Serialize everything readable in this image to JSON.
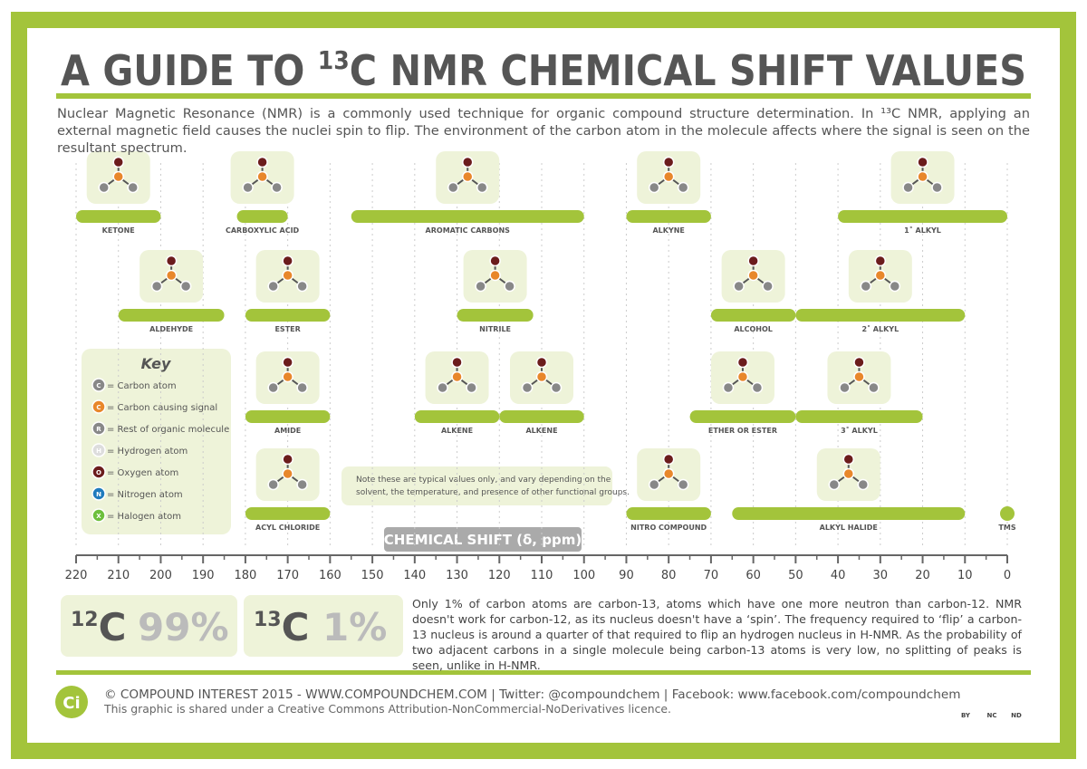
{
  "header": {
    "title_parts": [
      "A GUIDE TO ",
      "13",
      "C NMR CHEMICAL SHIFT VALUES"
    ],
    "intro": "Nuclear Magnetic Resonance (NMR) is a commonly used technique for organic compound structure determination. In ¹³C NMR, applying an external magnetic field causes the nuclei spin to flip. The environment of the carbon atom in the molecule affects where the signal is seen on the resultant spectrum."
  },
  "shift_rows": [
    [
      {
        "label": "KETONE",
        "from": 220,
        "to": 200
      },
      {
        "label": "CARBOXYLIC ACID",
        "from": 182,
        "to": 170
      },
      {
        "label": "AROMATIC CARBONS",
        "from": 155,
        "to": 100
      },
      {
        "label": "ALKYNE",
        "from": 90,
        "to": 70
      },
      {
        "label": "1˚ ALKYL",
        "from": 40,
        "to": 0
      }
    ],
    [
      {
        "label": "ALDEHYDE",
        "from": 210,
        "to": 185
      },
      {
        "label": "ESTER",
        "from": 180,
        "to": 160
      },
      {
        "label": "NITRILE",
        "from": 130,
        "to": 112
      },
      {
        "label": "ALCOHOL",
        "from": 70,
        "to": 50
      },
      {
        "label": "2˚ ALKYL",
        "from": 50,
        "to": 10
      }
    ],
    [
      {
        "label": "AMIDE",
        "from": 180,
        "to": 160
      },
      {
        "label": "ALKENE",
        "from": 140,
        "to": 120
      },
      {
        "label": "ALKENE",
        "from": 120,
        "to": 100
      },
      {
        "label": "ETHER OR ESTER",
        "from": 75,
        "to": 50
      },
      {
        "label": "3˚ ALKYL",
        "from": 50,
        "to": 20
      }
    ],
    [
      {
        "label": "ACYL CHLORIDE",
        "from": 180,
        "to": 160
      },
      {
        "label": "NITRO COMPOUND",
        "from": 90,
        "to": 70
      },
      {
        "label": "ALKYL HALIDE",
        "from": 65,
        "to": 10
      }
    ]
  ],
  "tms": {
    "label": "TMS",
    "value": 0
  },
  "key": {
    "title": "Key",
    "items": [
      {
        "symbol": "C",
        "label": "= Carbon atom"
      },
      {
        "symbol": "C",
        "label": "= Carbon causing signal"
      },
      {
        "symbol": "R",
        "label": "= Rest of organic molecule"
      },
      {
        "symbol": "H",
        "label": "= Hydrogen atom"
      },
      {
        "symbol": "O",
        "label": "= Oxygen atom"
      },
      {
        "symbol": "N",
        "label": "= Nitrogen atom"
      },
      {
        "symbol": "X",
        "label": "= Halogen atom"
      }
    ]
  },
  "note": [
    "Note these are typical values only, and vary depending on the",
    "solvent, the temperature, and presence of other functional groups."
  ],
  "axis": {
    "label": "CHEMICAL SHIFT (δ, ppm)",
    "lim": [
      220,
      0
    ],
    "ticks": [
      220,
      210,
      200,
      190,
      180,
      170,
      160,
      150,
      140,
      130,
      120,
      110,
      100,
      90,
      80,
      70,
      60,
      50,
      40,
      30,
      20,
      10,
      0
    ]
  },
  "abundance": [
    {
      "mass": "12",
      "element": "C",
      "percent": "99%"
    },
    {
      "mass": "13",
      "element": "C",
      "percent": "1%"
    }
  ],
  "explanation": "Only 1% of carbon atoms are carbon-13, atoms which have one more neutron than carbon-12. NMR doesn't work for carbon-12, as its nucleus doesn't have a ‘spin’. The frequency required to ‘flip’ a carbon-13 nucleus is around a quarter of that required to flip an hydrogen nucleus in H-NMR. As the probability of two adjacent carbons in a single molecule being carbon-13 atoms is very low, no splitting of peaks is seen, unlike in H-NMR.",
  "footer": {
    "logo": "Ci",
    "credit": "© COMPOUND INTEREST 2015 - WWW.COMPOUNDCHEM.COM | Twitter: @compoundchem | Facebook: www.facebook.com/compoundchem",
    "licence": "This graphic is shared under a Creative Commons Attribution-NonCommercial-NoDerivatives licence.",
    "licence_icons": [
      "BY",
      "NC",
      "ND"
    ]
  }
}
